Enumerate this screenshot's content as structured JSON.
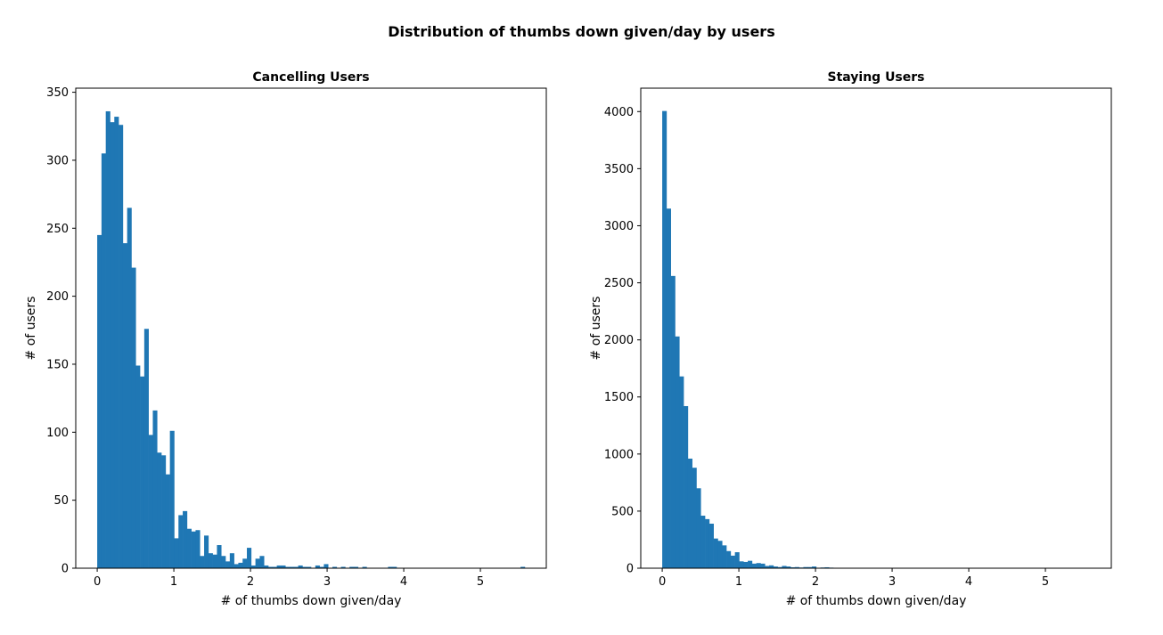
{
  "figure": {
    "title": "Distribution of thumbs down given/day by users"
  },
  "colors": {
    "bar": "#1f77b4",
    "axis": "#000000",
    "background": "#ffffff"
  },
  "chart_data": [
    {
      "type": "bar",
      "subtype": "histogram",
      "title": "Cancelling Users",
      "xlabel": "# of thumbs down given/day",
      "ylabel": "# of users",
      "xlim": [
        -0.28,
        5.86
      ],
      "ylim": [
        0,
        353
      ],
      "xticks": [
        0,
        1,
        2,
        3,
        4,
        5
      ],
      "yticks": [
        0,
        50,
        100,
        150,
        200,
        250,
        300,
        350
      ],
      "grid": false,
      "bin_start": 0,
      "bin_width": 0.0558,
      "values": [
        245,
        305,
        336,
        328,
        332,
        326,
        239,
        265,
        221,
        149,
        141,
        176,
        98,
        116,
        85,
        83,
        69,
        101,
        22,
        39,
        42,
        29,
        27,
        28,
        9,
        24,
        11,
        10,
        17,
        9,
        5,
        11,
        3,
        4,
        7,
        15,
        2,
        7,
        9,
        2,
        1,
        1,
        2,
        2,
        1,
        1,
        1,
        2,
        1,
        1,
        0,
        2,
        1,
        3,
        0,
        1,
        0,
        1,
        0,
        1,
        1,
        0,
        1,
        0,
        0,
        0,
        0,
        0,
        1,
        1,
        0,
        0,
        0,
        0,
        0,
        0,
        0,
        0,
        0,
        0,
        0,
        0,
        0,
        0,
        0,
        0,
        0,
        0,
        0,
        0,
        0,
        0,
        0,
        0,
        0,
        0,
        0,
        0,
        0,
        1
      ]
    },
    {
      "type": "bar",
      "subtype": "histogram",
      "title": "Staying Users",
      "xlabel": "# of thumbs down given/day",
      "ylabel": "# of users",
      "xlim": [
        -0.28,
        5.86
      ],
      "ylim": [
        0,
        4205
      ],
      "xticks": [
        0,
        1,
        2,
        3,
        4,
        5
      ],
      "yticks": [
        0,
        500,
        1000,
        1500,
        2000,
        2500,
        3000,
        3500,
        4000
      ],
      "grid": false,
      "bin_start": 0,
      "bin_width": 0.0558,
      "values": [
        4005,
        3150,
        2560,
        2030,
        1680,
        1420,
        960,
        880,
        700,
        460,
        430,
        390,
        260,
        240,
        200,
        150,
        110,
        140,
        60,
        55,
        65,
        40,
        45,
        40,
        20,
        25,
        15,
        10,
        20,
        15,
        8,
        10,
        6,
        10,
        10,
        15,
        4,
        6,
        8,
        5,
        3,
        2,
        2,
        2,
        1,
        1,
        1,
        1,
        1,
        1,
        0,
        1,
        0,
        1,
        0,
        0,
        0,
        0,
        0,
        0,
        0,
        0,
        0,
        0,
        0,
        0,
        0,
        0,
        0,
        0,
        0,
        0,
        0,
        0,
        0,
        0,
        0,
        0,
        0,
        0,
        0,
        0,
        0,
        0,
        0,
        0,
        0,
        0,
        0,
        0,
        0,
        0,
        0,
        0,
        0,
        0,
        0,
        0,
        0,
        0
      ]
    }
  ]
}
